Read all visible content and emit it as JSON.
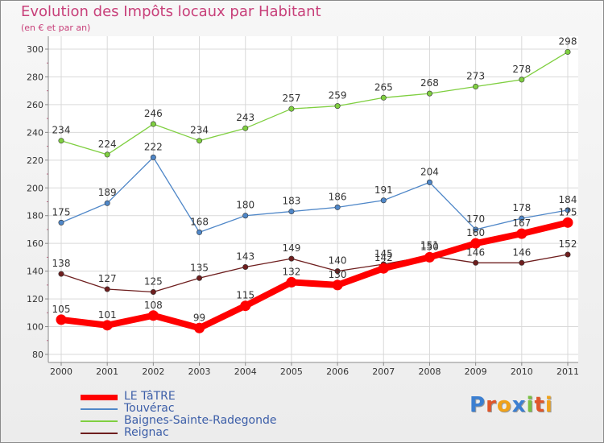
{
  "header": {
    "title": "Evolution des Impôts locaux par Habitant",
    "subtitle": "(en € et par an)"
  },
  "logo": {
    "letters": [
      "P",
      "r",
      "o",
      "x",
      "i",
      "t",
      "i"
    ],
    "colors": [
      "#3b7fd1",
      "#e0562a",
      "#f0a21a",
      "#3b7fd1",
      "#7ac143",
      "#e0562a",
      "#f0a21a"
    ]
  },
  "chart_data": {
    "type": "line",
    "title": "Evolution des Impôts locaux par Habitant",
    "subtitle": "(en € et par an)",
    "x": [
      "2000",
      "2001",
      "2002",
      "2003",
      "2004",
      "2005",
      "2006",
      "2007",
      "2008",
      "2009",
      "2010",
      "2011"
    ],
    "ylim": [
      80,
      300
    ],
    "yticks": [
      "80",
      "100",
      "120",
      "140",
      "160",
      "180",
      "200",
      "220",
      "240",
      "260",
      "280",
      "300"
    ],
    "grid": true,
    "legend_position": "bottom-left",
    "series": [
      {
        "name": "LE TâTRE",
        "color": "#ff0000",
        "values": [
          105,
          101,
          108,
          99,
          115,
          132,
          130,
          142,
          150,
          160,
          167,
          175
        ]
      },
      {
        "name": "Touvérac",
        "color": "#4f87c8",
        "values": [
          175,
          189,
          222,
          168,
          180,
          183,
          186,
          191,
          204,
          170,
          178,
          184
        ]
      },
      {
        "name": "Baignes-Sainte-Radegonde",
        "color": "#7fcf40",
        "values": [
          234,
          224,
          246,
          234,
          243,
          257,
          259,
          265,
          268,
          273,
          278,
          298
        ]
      },
      {
        "name": "Reignac",
        "color": "#6e1e1e",
        "values": [
          138,
          127,
          125,
          135,
          143,
          149,
          140,
          145,
          151,
          146,
          146,
          152
        ]
      }
    ]
  }
}
